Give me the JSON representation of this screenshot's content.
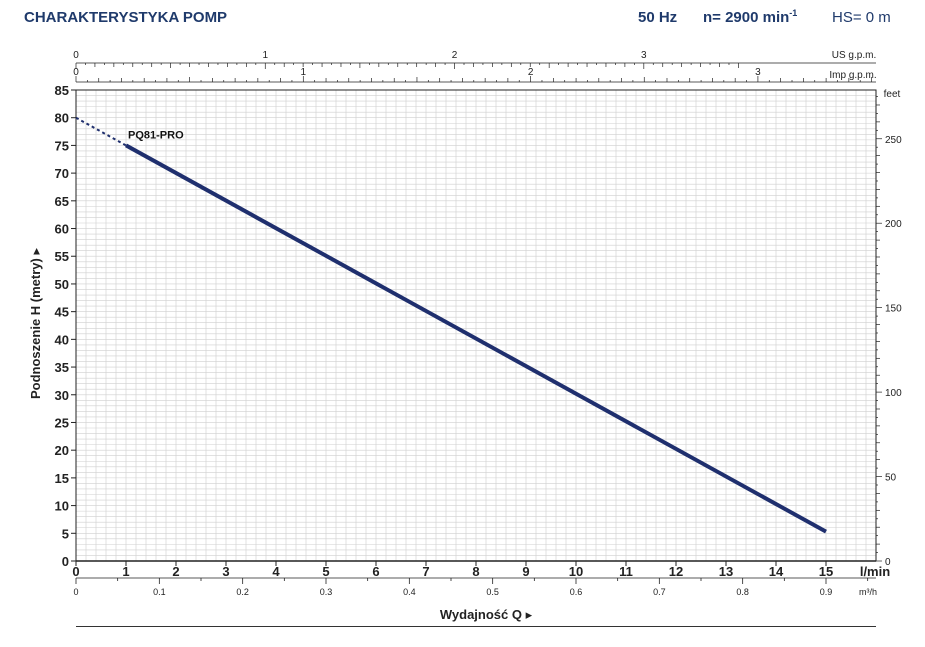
{
  "header": {
    "title": "CHARAKTERYSTYKA POMP",
    "frequency": "50 Hz",
    "speed_prefix": "n= 2900 min",
    "speed_sup": "-1",
    "hs": "HS= 0 m"
  },
  "colors": {
    "title": "#1f3a6b",
    "curve": "#1f2f6e",
    "grid": "#cfcfcf",
    "axis": "#222222"
  },
  "chart_data": {
    "type": "line",
    "ylabel": "Podnoszenie H  (metry)",
    "xlabel": "Wydajność Q",
    "x_unit": "l/min",
    "x2_unit": "m³/h",
    "top_unit_1": "US g.p.m.",
    "top_unit_2": "Imp g.p.m.",
    "right_unit": "feet",
    "xlim": [
      0,
      16
    ],
    "ylim": [
      0,
      85
    ],
    "x_ticks": [
      0,
      1,
      2,
      3,
      4,
      5,
      6,
      7,
      8,
      9,
      10,
      11,
      12,
      13,
      14,
      15
    ],
    "y_ticks": [
      0,
      5,
      10,
      15,
      20,
      25,
      30,
      35,
      40,
      45,
      50,
      55,
      60,
      65,
      70,
      75,
      80,
      85
    ],
    "m3h_ticks": [
      "0",
      "0.1",
      "0.2",
      "0.3",
      "0.4",
      "0.5",
      "0.6",
      "0.7",
      "0.8",
      "0.9"
    ],
    "usgpm_ticks": [
      "0",
      "1",
      "2",
      "3"
    ],
    "impgpm_ticks": [
      "0",
      "1",
      "2",
      "3"
    ],
    "feet_ticks": [
      "0",
      "50",
      "100",
      "150",
      "200",
      "250"
    ],
    "series": [
      {
        "name": "PQ81-PRO",
        "dashed": {
          "x": [
            0,
            1
          ],
          "y": [
            80,
            75
          ]
        },
        "solid": {
          "x": [
            1,
            15
          ],
          "y": [
            75,
            5.3
          ]
        }
      }
    ]
  }
}
